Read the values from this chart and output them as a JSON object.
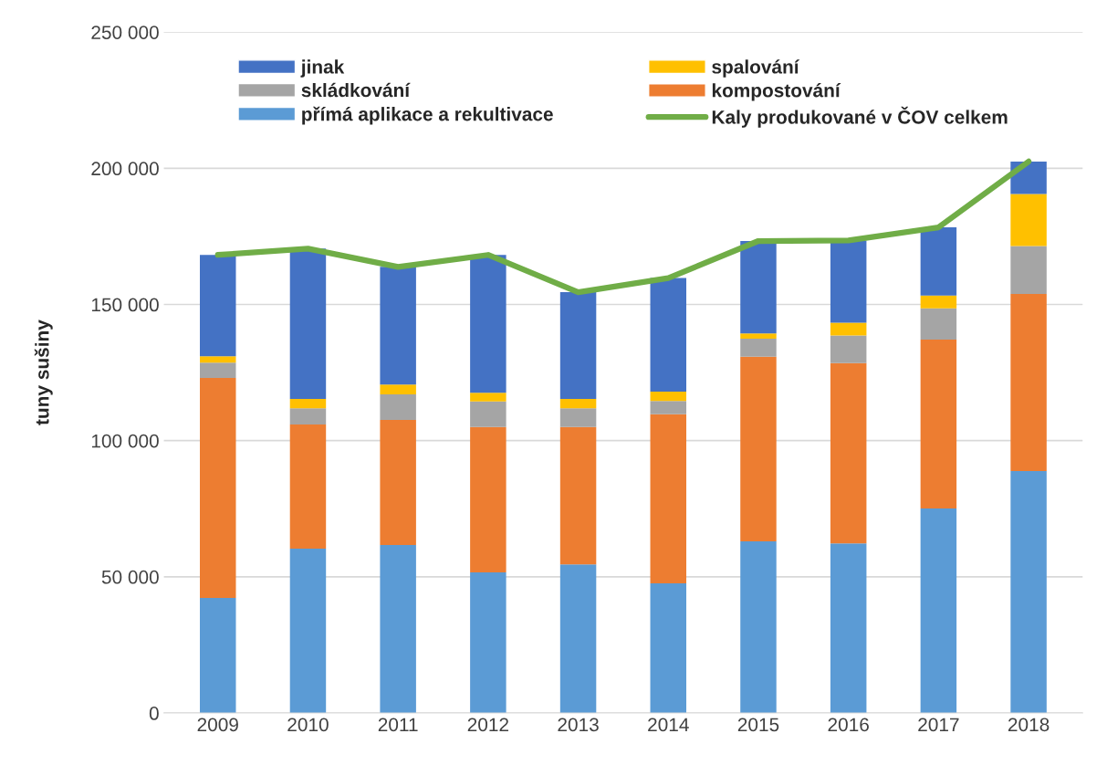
{
  "chart_data": {
    "type": "bar",
    "stacked": true,
    "ylabel": "tuny sušiny",
    "categories": [
      "2009",
      "2010",
      "2011",
      "2012",
      "2013",
      "2014",
      "2015",
      "2016",
      "2017",
      "2018"
    ],
    "series": [
      {
        "name": "přímá aplikace a rekultivace",
        "color": "#5b9bd5",
        "values": [
          42200,
          60300,
          61700,
          51600,
          54600,
          47600,
          63000,
          62300,
          75100,
          88800
        ]
      },
      {
        "name": "kompostování",
        "color": "#ed7d31",
        "values": [
          80800,
          45600,
          45900,
          53400,
          50400,
          62100,
          67800,
          66200,
          62000,
          65100
        ]
      },
      {
        "name": "skládkování",
        "color": "#a5a5a5",
        "values": [
          5600,
          6000,
          9400,
          9400,
          6900,
          4900,
          6600,
          10100,
          11500,
          17600
        ]
      },
      {
        "name": "spalování",
        "color": "#ffc000",
        "values": [
          2400,
          3400,
          3600,
          3200,
          3400,
          3400,
          2000,
          4700,
          4700,
          19100
        ]
      },
      {
        "name": "jinak",
        "color": "#4472c4",
        "values": [
          37200,
          55200,
          43200,
          50600,
          39200,
          41700,
          33900,
          30200,
          25000,
          11900
        ]
      },
      {
        "name": "Kaly produkované v ČOV celkem",
        "type": "line",
        "color": "#70ad47",
        "values": [
          168200,
          170500,
          163800,
          168200,
          154500,
          159700,
          173300,
          173500,
          178300,
          202500
        ]
      }
    ],
    "ylim": [
      0,
      250000
    ],
    "yticks": [
      {
        "value": 0,
        "label": "0"
      },
      {
        "value": 50000,
        "label": "50 000"
      },
      {
        "value": 100000,
        "label": "100 000"
      },
      {
        "value": 150000,
        "label": "150 000"
      },
      {
        "value": 200000,
        "label": "200 000"
      },
      {
        "value": 250000,
        "label": "250 000"
      }
    ],
    "grid": "y",
    "legend": "top",
    "marker": "none",
    "line_style": "solid"
  }
}
